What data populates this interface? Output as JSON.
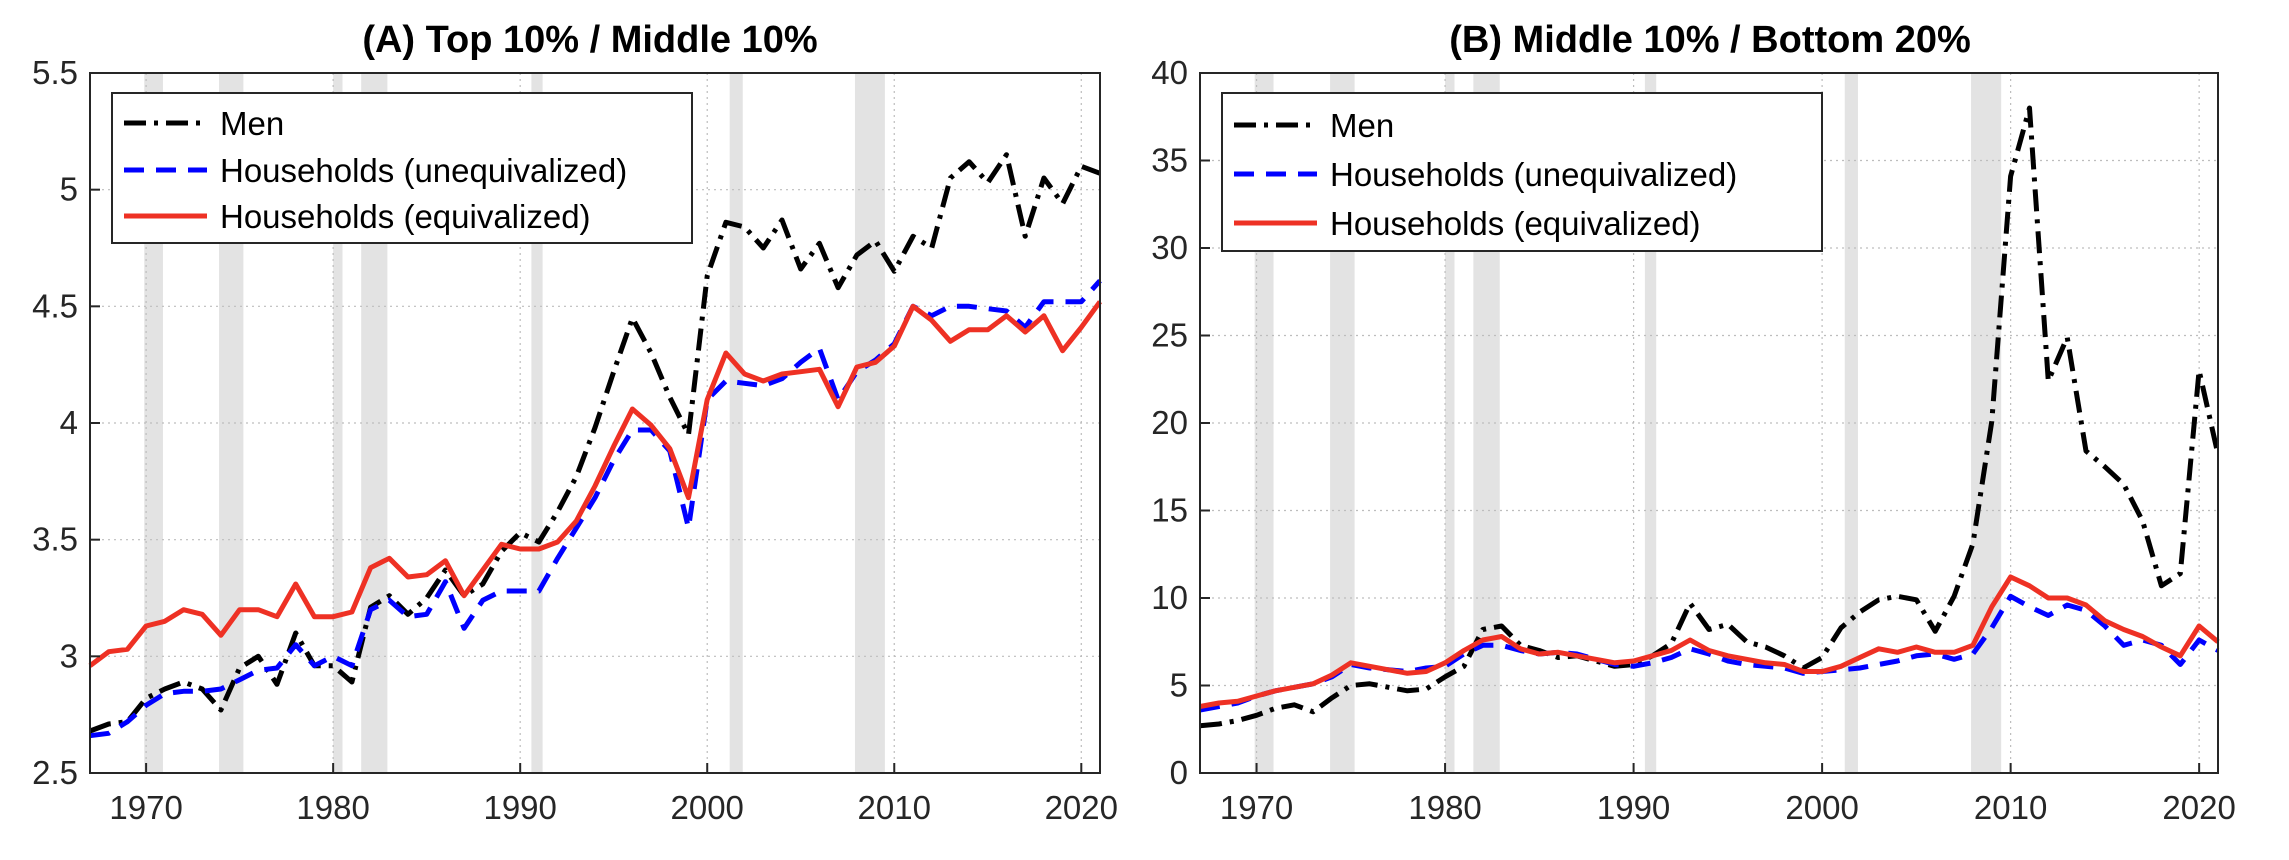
{
  "chart_data": [
    {
      "type": "line",
      "title": "(A) Top 10% / Middle 10%",
      "xlabel": "",
      "ylabel": "",
      "xlim": [
        1967,
        2021
      ],
      "ylim": [
        2.5,
        5.5
      ],
      "x_ticks": [
        "1970",
        "1980",
        "1990",
        "2000",
        "2010",
        "2020"
      ],
      "y_ticks": [
        "2.5",
        "3",
        "3.5",
        "4",
        "4.5",
        "5",
        "5.5"
      ],
      "grid": "dotted",
      "legend_position": "top-left",
      "recessions": [
        [
          1969.9,
          1970.9
        ],
        [
          1973.9,
          1975.2
        ],
        [
          1980.0,
          1980.5
        ],
        [
          1981.5,
          1982.9
        ],
        [
          1990.6,
          1991.2
        ],
        [
          2001.2,
          2001.9
        ],
        [
          2007.9,
          2009.5
        ]
      ],
      "x": [
        1967,
        1968,
        1969,
        1970,
        1971,
        1972,
        1973,
        1974,
        1975,
        1976,
        1977,
        1978,
        1979,
        1980,
        1981,
        1982,
        1983,
        1984,
        1985,
        1986,
        1987,
        1988,
        1989,
        1990,
        1991,
        1992,
        1993,
        1994,
        1995,
        1996,
        1997,
        1998,
        1999,
        2000,
        2001,
        2002,
        2003,
        2004,
        2005,
        2006,
        2007,
        2008,
        2009,
        2010,
        2011,
        2012,
        2013,
        2014,
        2015,
        2016,
        2017,
        2018,
        2019,
        2020,
        2021
      ],
      "series": [
        {
          "name": "Men",
          "style": "dashdot",
          "color": "#000000",
          "values": [
            2.68,
            2.71,
            2.72,
            2.82,
            2.86,
            2.89,
            2.86,
            2.77,
            2.95,
            3.0,
            2.88,
            3.1,
            2.96,
            2.96,
            2.89,
            3.21,
            3.26,
            3.18,
            3.25,
            3.37,
            3.26,
            3.31,
            3.45,
            3.53,
            3.49,
            3.62,
            3.77,
            3.98,
            4.22,
            4.45,
            4.3,
            4.11,
            3.95,
            4.63,
            4.86,
            4.84,
            4.75,
            4.87,
            4.66,
            4.77,
            4.58,
            4.72,
            4.78,
            4.65,
            4.8,
            4.75,
            5.05,
            5.12,
            5.03,
            5.15,
            4.8,
            5.05,
            4.94,
            5.1,
            5.07
          ]
        },
        {
          "name": "Households (unequivalized)",
          "style": "dashed",
          "color": "#0000ff",
          "values": [
            2.66,
            2.67,
            2.72,
            2.79,
            2.84,
            2.85,
            2.85,
            2.86,
            2.9,
            2.94,
            2.95,
            3.05,
            2.96,
            3.0,
            2.96,
            3.2,
            3.24,
            3.17,
            3.18,
            3.32,
            3.12,
            3.24,
            3.28,
            3.28,
            3.28,
            3.42,
            3.55,
            3.68,
            3.84,
            3.97,
            3.97,
            3.88,
            3.55,
            4.1,
            4.18,
            4.17,
            4.16,
            4.19,
            4.26,
            4.32,
            4.1,
            4.22,
            4.27,
            4.34,
            4.5,
            4.46,
            4.5,
            4.5,
            4.49,
            4.48,
            4.41,
            4.52,
            4.52,
            4.52,
            4.61
          ]
        },
        {
          "name": "Households (equivalized)",
          "style": "solid",
          "color": "#ee3124",
          "values": [
            2.96,
            3.02,
            3.03,
            3.13,
            3.15,
            3.2,
            3.18,
            3.09,
            3.2,
            3.2,
            3.17,
            3.31,
            3.17,
            3.17,
            3.19,
            3.38,
            3.42,
            3.34,
            3.35,
            3.41,
            3.26,
            3.37,
            3.48,
            3.46,
            3.46,
            3.49,
            3.58,
            3.73,
            3.9,
            4.06,
            3.99,
            3.89,
            3.68,
            4.1,
            4.3,
            4.21,
            4.18,
            4.21,
            4.22,
            4.23,
            4.07,
            4.24,
            4.26,
            4.33,
            4.5,
            4.44,
            4.35,
            4.4,
            4.4,
            4.46,
            4.39,
            4.46,
            4.31,
            4.41,
            4.52
          ]
        }
      ]
    },
    {
      "type": "line",
      "title": "(B) Middle 10% / Bottom 20%",
      "xlabel": "",
      "ylabel": "",
      "xlim": [
        1967,
        2021
      ],
      "ylim": [
        0,
        40
      ],
      "x_ticks": [
        "1970",
        "1980",
        "1990",
        "2000",
        "2010",
        "2020"
      ],
      "y_ticks": [
        "0",
        "5",
        "10",
        "15",
        "20",
        "25",
        "30",
        "35",
        "40"
      ],
      "grid": "dotted",
      "legend_position": "top-left",
      "recessions": [
        [
          1969.9,
          1970.9
        ],
        [
          1973.9,
          1975.2
        ],
        [
          1980.0,
          1980.5
        ],
        [
          1981.5,
          1982.9
        ],
        [
          1990.6,
          1991.2
        ],
        [
          2001.2,
          2001.9
        ],
        [
          2007.9,
          2009.5
        ]
      ],
      "x": [
        1967,
        1968,
        1969,
        1970,
        1971,
        1972,
        1973,
        1974,
        1975,
        1976,
        1977,
        1978,
        1979,
        1980,
        1981,
        1982,
        1983,
        1984,
        1985,
        1986,
        1987,
        1988,
        1989,
        1990,
        1991,
        1992,
        1993,
        1994,
        1995,
        1996,
        1997,
        1998,
        1999,
        2000,
        2001,
        2002,
        2003,
        2004,
        2005,
        2006,
        2007,
        2008,
        2009,
        2010,
        2011,
        2012,
        2013,
        2014,
        2015,
        2016,
        2017,
        2018,
        2019,
        2020,
        2021
      ],
      "series": [
        {
          "name": "Men",
          "style": "dashdot",
          "color": "#000000",
          "values": [
            2.7,
            2.8,
            3.0,
            3.3,
            3.7,
            3.9,
            3.5,
            4.3,
            5.0,
            5.1,
            4.9,
            4.7,
            4.8,
            5.5,
            6.1,
            8.2,
            8.4,
            7.3,
            7.0,
            6.6,
            6.7,
            6.4,
            6.1,
            6.2,
            6.7,
            7.4,
            9.7,
            8.2,
            8.5,
            7.5,
            7.2,
            6.7,
            6.0,
            6.6,
            8.3,
            9.2,
            9.9,
            10.1,
            9.9,
            8.1,
            10.1,
            13.1,
            20.1,
            34.1,
            38.0,
            22.4,
            24.9,
            18.4,
            17.5,
            16.5,
            14.4,
            10.7,
            11.4,
            23.0,
            18.2
          ]
        },
        {
          "name": "Households (unequivalized)",
          "style": "dashed",
          "color": "#0000ff",
          "values": [
            3.6,
            3.8,
            4.0,
            4.4,
            4.7,
            4.9,
            5.1,
            5.5,
            6.2,
            6.0,
            5.9,
            5.8,
            6.0,
            6.1,
            6.8,
            7.3,
            7.3,
            7.0,
            6.8,
            6.9,
            6.8,
            6.5,
            6.2,
            6.1,
            6.3,
            6.6,
            7.1,
            6.8,
            6.4,
            6.2,
            6.1,
            6.0,
            5.7,
            5.8,
            5.9,
            6.0,
            6.2,
            6.4,
            6.7,
            6.8,
            6.5,
            6.8,
            8.3,
            10.1,
            9.5,
            9.0,
            9.6,
            9.3,
            8.4,
            7.3,
            7.6,
            7.3,
            6.2,
            7.6,
            7.0
          ]
        },
        {
          "name": "Households (equivalized)",
          "style": "solid",
          "color": "#ee3124",
          "values": [
            3.8,
            4.0,
            4.1,
            4.4,
            4.7,
            4.9,
            5.1,
            5.6,
            6.3,
            6.1,
            5.9,
            5.7,
            5.8,
            6.3,
            7.0,
            7.6,
            7.8,
            7.1,
            6.8,
            6.9,
            6.7,
            6.5,
            6.3,
            6.4,
            6.7,
            7.0,
            7.6,
            7.0,
            6.7,
            6.5,
            6.3,
            6.2,
            5.8,
            5.8,
            6.1,
            6.6,
            7.1,
            6.9,
            7.2,
            6.9,
            6.9,
            7.3,
            9.5,
            11.2,
            10.7,
            10.0,
            10.0,
            9.6,
            8.7,
            8.2,
            7.8,
            7.2,
            6.7,
            8.4,
            7.5
          ]
        }
      ]
    }
  ]
}
